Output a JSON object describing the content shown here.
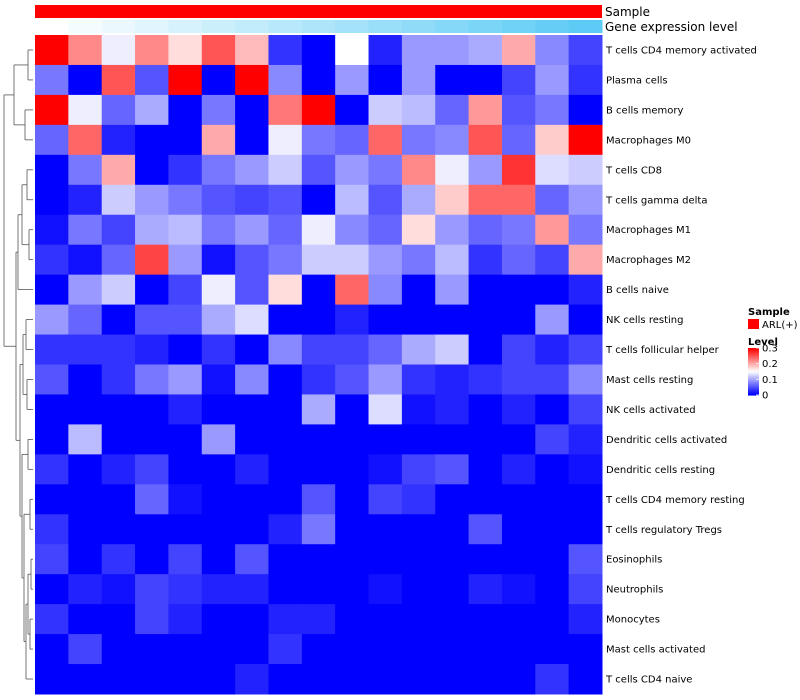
{
  "chart_data": {
    "type": "heatmap",
    "annotations": [
      {
        "name": "Sample",
        "color": "#ff0000"
      },
      {
        "name": "Gene expression level",
        "gradient": [
          "#ffffff",
          "#5ccbf5"
        ]
      }
    ],
    "rows": [
      "T cells CD4 memory activated",
      "Plasma cells",
      "B cells memory",
      "Macrophages M0",
      "T cells CD8",
      "T cells gamma delta",
      "Macrophages M1",
      "Macrophages M2",
      "B cells naive",
      "NK cells resting",
      "T cells follicular helper",
      "Mast cells resting",
      "NK cells activated",
      "Dendritic cells activated",
      "Dendritic cells resting",
      "T cells CD4 memory resting",
      "T cells regulatory  Tregs",
      "Eosinophils",
      "Neutrophils",
      "Monocytes",
      "Mast cells activated",
      "T cells CD4 naive"
    ],
    "n_columns": 17,
    "values": [
      [
        0.3,
        0.22,
        0.14,
        0.22,
        0.17,
        0.25,
        0.19,
        0.03,
        0.0,
        0.15,
        0.02,
        0.09,
        0.09,
        0.1,
        0.2,
        0.08,
        0.04
      ],
      [
        0.07,
        0.0,
        0.25,
        0.05,
        0.3,
        0.0,
        0.3,
        0.08,
        0.0,
        0.09,
        0.0,
        0.09,
        0.0,
        0.0,
        0.04,
        0.09,
        0.03
      ],
      [
        0.3,
        0.14,
        0.06,
        0.1,
        0.0,
        0.07,
        0.0,
        0.23,
        0.3,
        0.0,
        0.12,
        0.11,
        0.06,
        0.21,
        0.05,
        0.07,
        0.0
      ],
      [
        0.06,
        0.24,
        0.02,
        0.0,
        0.0,
        0.2,
        0.0,
        0.14,
        0.07,
        0.06,
        0.24,
        0.07,
        0.08,
        0.25,
        0.06,
        0.18,
        0.3
      ],
      [
        0.0,
        0.07,
        0.2,
        0.0,
        0.03,
        0.07,
        0.09,
        0.12,
        0.05,
        0.09,
        0.07,
        0.22,
        0.14,
        0.09,
        0.27,
        0.13,
        0.12
      ],
      [
        0.0,
        0.02,
        0.12,
        0.09,
        0.07,
        0.05,
        0.04,
        0.05,
        0.0,
        0.11,
        0.05,
        0.1,
        0.18,
        0.24,
        0.24,
        0.06,
        0.09
      ],
      [
        0.01,
        0.07,
        0.04,
        0.1,
        0.11,
        0.07,
        0.09,
        0.06,
        0.14,
        0.08,
        0.06,
        0.17,
        0.09,
        0.06,
        0.07,
        0.21,
        0.07
      ],
      [
        0.03,
        0.01,
        0.06,
        0.26,
        0.09,
        0.01,
        0.05,
        0.07,
        0.12,
        0.12,
        0.09,
        0.07,
        0.11,
        0.03,
        0.06,
        0.04,
        0.2
      ],
      [
        0.0,
        0.09,
        0.12,
        0.0,
        0.04,
        0.14,
        0.05,
        0.17,
        0.0,
        0.24,
        0.08,
        0.0,
        0.09,
        0.0,
        0.0,
        0.0,
        0.02
      ],
      [
        0.09,
        0.06,
        0.0,
        0.05,
        0.05,
        0.1,
        0.13,
        0.0,
        0.0,
        0.02,
        0.0,
        0.0,
        0.0,
        0.0,
        0.0,
        0.09,
        0.0
      ],
      [
        0.03,
        0.03,
        0.03,
        0.02,
        0.0,
        0.03,
        0.0,
        0.08,
        0.04,
        0.04,
        0.06,
        0.1,
        0.12,
        0.0,
        0.04,
        0.02,
        0.04
      ],
      [
        0.05,
        0.0,
        0.03,
        0.07,
        0.09,
        0.01,
        0.08,
        0.0,
        0.03,
        0.05,
        0.09,
        0.03,
        0.02,
        0.03,
        0.04,
        0.04,
        0.08
      ],
      [
        0.0,
        0.0,
        0.0,
        0.0,
        0.02,
        0.0,
        0.0,
        0.0,
        0.1,
        0.0,
        0.13,
        0.01,
        0.02,
        0.0,
        0.02,
        0.0,
        0.04
      ],
      [
        0.0,
        0.11,
        0.0,
        0.0,
        0.0,
        0.09,
        0.0,
        0.0,
        0.0,
        0.0,
        0.0,
        0.0,
        0.0,
        0.0,
        0.0,
        0.04,
        0.02
      ],
      [
        0.03,
        0.0,
        0.02,
        0.04,
        0.0,
        0.0,
        0.02,
        0.0,
        0.0,
        0.0,
        0.01,
        0.04,
        0.05,
        0.0,
        0.02,
        0.0,
        0.01
      ],
      [
        0.0,
        0.0,
        0.0,
        0.06,
        0.01,
        0.0,
        0.0,
        0.0,
        0.05,
        0.0,
        0.04,
        0.03,
        0.0,
        0.0,
        0.0,
        0.0,
        0.0
      ],
      [
        0.03,
        0.0,
        0.0,
        0.0,
        0.0,
        0.0,
        0.0,
        0.02,
        0.07,
        0.0,
        0.0,
        0.0,
        0.0,
        0.05,
        0.0,
        0.0,
        0.0
      ],
      [
        0.04,
        0.0,
        0.03,
        0.0,
        0.04,
        0.0,
        0.05,
        0.0,
        0.0,
        0.0,
        0.0,
        0.0,
        0.0,
        0.0,
        0.0,
        0.0,
        0.05
      ],
      [
        0.0,
        0.02,
        0.01,
        0.04,
        0.03,
        0.02,
        0.02,
        0.0,
        0.0,
        0.0,
        0.01,
        0.0,
        0.0,
        0.02,
        0.01,
        0.0,
        0.04
      ],
      [
        0.03,
        0.0,
        0.0,
        0.04,
        0.02,
        0.0,
        0.0,
        0.02,
        0.02,
        0.0,
        0.0,
        0.0,
        0.0,
        0.0,
        0.0,
        0.0,
        0.02
      ],
      [
        0.0,
        0.04,
        0.0,
        0.0,
        0.0,
        0.0,
        0.0,
        0.03,
        0.0,
        0.0,
        0.0,
        0.0,
        0.0,
        0.0,
        0.0,
        0.0,
        0.0
      ],
      [
        0.0,
        0.0,
        0.0,
        0.0,
        0.0,
        0.0,
        0.02,
        0.0,
        0.0,
        0.0,
        0.0,
        0.0,
        0.0,
        0.0,
        0.0,
        0.03,
        0.0
      ]
    ],
    "color_scale": {
      "min": 0,
      "max": 0.3,
      "colors": [
        "#0000ff",
        "#ffffff",
        "#ff0000"
      ]
    },
    "legend": {
      "sample_title": "Sample",
      "sample_entry": "ARL(+)",
      "sample_color": "#ff0000",
      "level_title": "Level",
      "ticks": [
        0.3,
        0.2,
        0.1,
        0
      ],
      "tick_labels": [
        "0.3",
        "0.2",
        "0.1",
        "0"
      ]
    }
  }
}
